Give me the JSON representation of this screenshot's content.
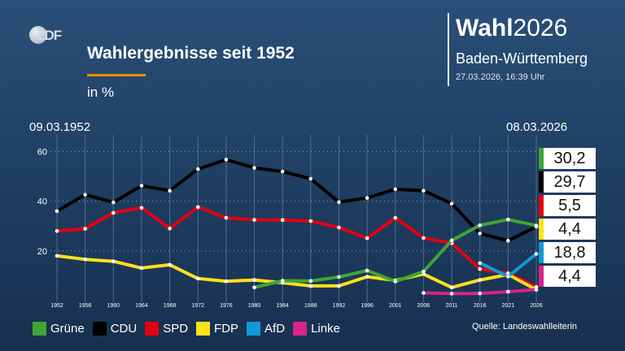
{
  "header": {
    "logo_text": "2DF",
    "title": "Wahlergebnisse seit 1952",
    "subtitle": "in %",
    "brand_bold": "Wahl",
    "brand_year": "2026",
    "region": "Baden-Württemberg",
    "timestamp": "27.03.2026, 16:39 Uhr",
    "date_start": "09.03.1952",
    "date_end": "08.03.2026"
  },
  "footer": {
    "source": "Quelle: Landeswahlleiterin"
  },
  "colors": {
    "accent": "#f28c00",
    "gruene": "#3fa535",
    "cdu": "#000000",
    "spd": "#e3000f",
    "fdp": "#ffe119",
    "afd": "#0f9ad6",
    "linke": "#d72488"
  },
  "chart_data": {
    "type": "line",
    "title": "Wahlergebnisse seit 1952",
    "xlabel": "",
    "ylabel": "in %",
    "ylim": [
      0,
      66
    ],
    "yticks": [
      "20",
      "40",
      "60"
    ],
    "grid": "vertical",
    "categories": [
      "1952",
      "1956",
      "1960",
      "1964",
      "1968",
      "1972",
      "1976",
      "1980",
      "1984",
      "1988",
      "1992",
      "1996",
      "2001",
      "2006",
      "2011",
      "2016",
      "2021",
      "2026"
    ],
    "series": [
      {
        "name": "CDU",
        "color": "#000000",
        "values": [
          36.0,
          42.6,
          39.5,
          46.2,
          44.2,
          52.9,
          56.7,
          53.4,
          51.9,
          49.0,
          39.6,
          41.3,
          44.8,
          44.2,
          39.0,
          27.0,
          24.1,
          29.7
        ]
      },
      {
        "name": "SPD",
        "color": "#e3000f",
        "values": [
          28.0,
          28.9,
          35.3,
          37.3,
          29.0,
          37.6,
          33.3,
          32.5,
          32.4,
          32.0,
          29.4,
          25.1,
          33.3,
          25.2,
          23.1,
          12.7,
          11.0,
          5.5
        ]
      },
      {
        "name": "FDP",
        "color": "#ffe119",
        "values": [
          18.0,
          16.6,
          15.8,
          13.1,
          14.4,
          8.9,
          7.8,
          8.3,
          7.2,
          5.9,
          5.9,
          9.6,
          8.1,
          10.7,
          5.3,
          8.3,
          10.5,
          4.4
        ]
      },
      {
        "name": "Grüne",
        "color": "#3fa535",
        "values": [
          null,
          null,
          null,
          null,
          null,
          null,
          null,
          5.3,
          8.0,
          7.9,
          9.5,
          12.1,
          7.7,
          11.7,
          24.2,
          30.3,
          32.6,
          30.2
        ]
      },
      {
        "name": "AfD",
        "color": "#0f9ad6",
        "values": [
          null,
          null,
          null,
          null,
          null,
          null,
          null,
          null,
          null,
          null,
          null,
          null,
          null,
          null,
          null,
          15.1,
          9.7,
          18.8
        ]
      },
      {
        "name": "Linke",
        "color": "#d72488",
        "values": [
          null,
          null,
          null,
          null,
          null,
          null,
          null,
          null,
          null,
          null,
          null,
          null,
          null,
          3.1,
          2.8,
          2.9,
          3.6,
          4.4
        ]
      }
    ],
    "results_2026": [
      {
        "name": "Grüne",
        "color": "#3fa535",
        "label": "30,2",
        "value": 30.2
      },
      {
        "name": "CDU",
        "color": "#000000",
        "label": "29,7",
        "value": 29.7
      },
      {
        "name": "SPD",
        "color": "#e3000f",
        "label": "5,5",
        "value": 5.5
      },
      {
        "name": "FDP",
        "color": "#ffe119",
        "label": "4,4",
        "value": 4.4
      },
      {
        "name": "AfD",
        "color": "#0f9ad6",
        "label": "18,8",
        "value": 18.8
      },
      {
        "name": "Linke",
        "color": "#d72488",
        "label": "4,4",
        "value": 4.4
      }
    ]
  },
  "legend": [
    {
      "label": "Grüne",
      "color": "#3fa535"
    },
    {
      "label": "CDU",
      "color": "#000000"
    },
    {
      "label": "SPD",
      "color": "#e3000f"
    },
    {
      "label": "FDP",
      "color": "#ffe119"
    },
    {
      "label": "AfD",
      "color": "#0f9ad6"
    },
    {
      "label": "Linke",
      "color": "#d72488"
    }
  ]
}
